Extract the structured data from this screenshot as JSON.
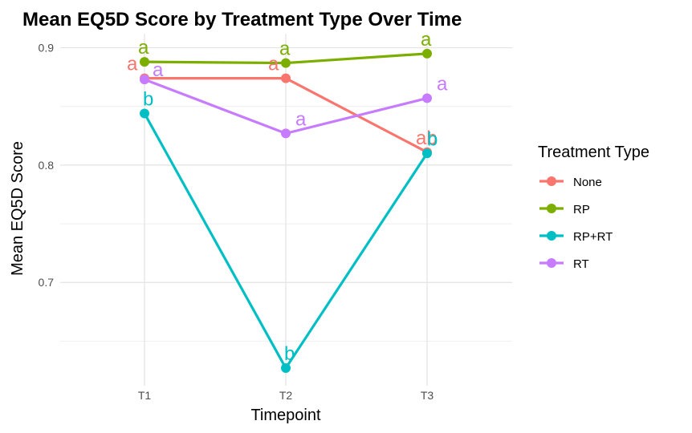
{
  "chart_data": {
    "type": "line",
    "title": "Mean EQ5D Score by Treatment Type Over Time",
    "xlabel": "Timepoint",
    "ylabel": "Mean EQ5D Score",
    "categories": [
      "T1",
      "T2",
      "T3"
    ],
    "y_ticks": [
      0.7,
      0.8,
      0.9
    ],
    "y_tick_labels": [
      "0.7",
      "0.8",
      "0.9"
    ],
    "ylim": [
      0.612,
      0.912
    ],
    "grid": true,
    "legend": {
      "title": "Treatment Type",
      "position": "right"
    },
    "series": [
      {
        "name": "None",
        "color": "#F8766D",
        "values": [
          0.874,
          0.874,
          0.811
        ],
        "letters": [
          "a",
          "a",
          "ab"
        ]
      },
      {
        "name": "RP",
        "color": "#7CAE00",
        "values": [
          0.888,
          0.887,
          0.895
        ],
        "letters": [
          "a",
          "a",
          "a"
        ]
      },
      {
        "name": "RP+RT",
        "color": "#00BFC4",
        "values": [
          0.844,
          0.627,
          0.81
        ],
        "letters": [
          "b",
          "b",
          "b"
        ]
      },
      {
        "name": "RT",
        "color": "#C77CFF",
        "values": [
          0.873,
          0.827,
          0.857
        ],
        "letters": [
          "a",
          "a",
          "a"
        ]
      }
    ]
  }
}
